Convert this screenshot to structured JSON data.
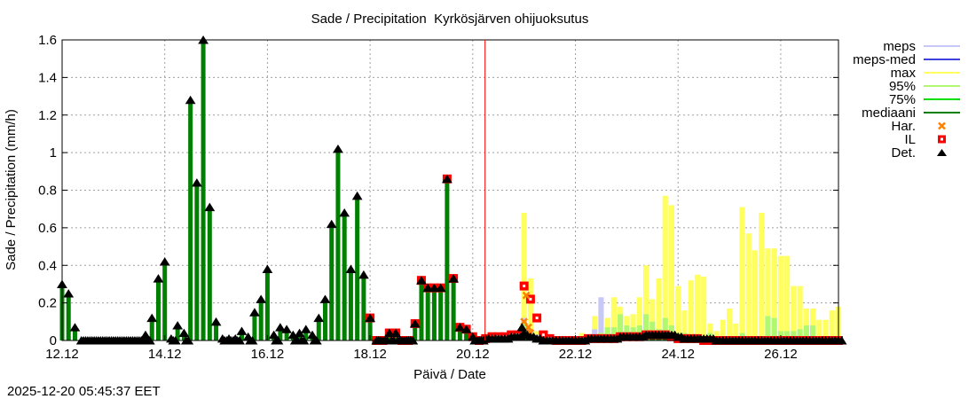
{
  "chart_data": {
    "type": "bar",
    "title": "Sade / Precipitation  Kyrkösjärven ohijuoksutus",
    "xlabel": "Päivä / Date",
    "ylabel": "Sade / Precipitation (mm/h)",
    "timestamp": "2025-12-20 05:45:37 EET",
    "ylim": [
      0,
      1.6
    ],
    "xlim": [
      "2025-12-12 00:00",
      "2025-12-27 03:00"
    ],
    "grid": true,
    "legend_position": "right",
    "y_ticks": [
      "0",
      "0.2",
      "0.4",
      "0.6",
      "0.8",
      "1",
      "1.2",
      "1.4",
      "1.6"
    ],
    "x_ticks": [
      {
        "label": "12.12",
        "date": "2025-12-12 00:00"
      },
      {
        "label": "14.12",
        "date": "2025-12-14 00:00"
      },
      {
        "label": "16.12",
        "date": "2025-12-16 00:00"
      },
      {
        "label": "18.12",
        "date": "2025-12-18 00:00"
      },
      {
        "label": "20.12",
        "date": "2025-12-20 00:00"
      },
      {
        "label": "22.12",
        "date": "2025-12-22 00:00"
      },
      {
        "label": "24.12",
        "date": "2025-12-24 00:00"
      },
      {
        "label": "26.12",
        "date": "2025-12-26 00:00"
      }
    ],
    "now_line": "2025-12-20 05:45",
    "colors": {
      "meps": "#c8c8f8",
      "meps-med": "#4040e0",
      "max": "#ffff60",
      "p95": "#b0f870",
      "p75": "#00e000",
      "mediaani": "#008000",
      "Har.": "#ff8000",
      "IL": "#ff0000",
      "Det.": "#000000",
      "now_line": "#ff0000"
    },
    "legend": [
      {
        "key": "meps",
        "label": "meps",
        "kind": "line"
      },
      {
        "key": "meps-med",
        "label": "meps-med",
        "kind": "line"
      },
      {
        "key": "max",
        "label": "max",
        "kind": "line"
      },
      {
        "key": "p95",
        "label": "95%",
        "kind": "line"
      },
      {
        "key": "p75",
        "label": "75%",
        "kind": "line"
      },
      {
        "key": "mediaani",
        "label": "mediaani",
        "kind": "line"
      },
      {
        "key": "Har.",
        "label": "Har.",
        "kind": "cross"
      },
      {
        "key": "IL",
        "label": "IL",
        "kind": "square"
      },
      {
        "key": "Det.",
        "label": "Det.",
        "kind": "triangle"
      }
    ],
    "observed": {
      "start": "2025-12-12 00:00",
      "step_hours": 3,
      "values": [
        0.3,
        0.25,
        0.07,
        0,
        0,
        0,
        0,
        0,
        0,
        0,
        0,
        0,
        0,
        0.03,
        0.12,
        0.33,
        0.42,
        0.01,
        0.08,
        0.04,
        1.28,
        0.84,
        1.6,
        0.71,
        0.1,
        0.01,
        0.01,
        0.01,
        0.05,
        0.02,
        0.15,
        0.22,
        0.38,
        0.03,
        0.07,
        0.06,
        0.03,
        0.04,
        0.06,
        0.03,
        0.12,
        0.22,
        0.62,
        1.02,
        0.68,
        0.38,
        0.77,
        0.35,
        0.12,
        0,
        0,
        0.04,
        0.04,
        0,
        0,
        0.09,
        0.32,
        0.28,
        0.28,
        0.28,
        0.86,
        0.33,
        0.07,
        0.06,
        0.02,
        0
      ]
    },
    "il_observed_from": "2025-12-18 00:00",
    "forecast": {
      "start": "2025-12-20 06:00",
      "step_hours": 3,
      "max": [
        0.01,
        0.02,
        0.02,
        0.03,
        0.03,
        0.04,
        0.68,
        0.33,
        0.05,
        0.04,
        0.02,
        0.01,
        0.01,
        0.02,
        0.02,
        0.04,
        0.01,
        0.13,
        0.17,
        0.12,
        0.23,
        0.18,
        0.13,
        0.14,
        0.23,
        0.4,
        0.22,
        0.33,
        0.77,
        0.72,
        0.29,
        0.16,
        0.32,
        0.35,
        0.34,
        0.09,
        0.05,
        0.11,
        0.17,
        0.09,
        0.71,
        0.57,
        0.48,
        0.68,
        0.49,
        0.49,
        0.45,
        0.45,
        0.29,
        0.29,
        0.17,
        0.17,
        0.11,
        0.11,
        0.16,
        0.18
      ],
      "p95": [
        0,
        0,
        0,
        0,
        0,
        0,
        0.1,
        0.04,
        0,
        0,
        0,
        0,
        0,
        0,
        0,
        0,
        0,
        0.03,
        0.04,
        0.07,
        0.07,
        0.14,
        0.08,
        0.07,
        0.08,
        0.14,
        0.1,
        0.06,
        0.12,
        0.08,
        0.04,
        0.04,
        0.03,
        0.03,
        0.02,
        0.04,
        0.02,
        0.02,
        0.02,
        0.02,
        0.04,
        0.02,
        0.02,
        0.02,
        0.13,
        0.12,
        0.05,
        0.05,
        0.05,
        0.06,
        0.08,
        0.08,
        0.02,
        0.02,
        0.02,
        0.01
      ],
      "meps": [
        0,
        0,
        0,
        0,
        0,
        0,
        0.12,
        0.06,
        0.03,
        0,
        0,
        0,
        0,
        0,
        0,
        0,
        0,
        0.06,
        0.23,
        0,
        0,
        0,
        0,
        0,
        0,
        0,
        0,
        0,
        0,
        0,
        0,
        0,
        0,
        0,
        0,
        0,
        0,
        0,
        0,
        0,
        0,
        0,
        0,
        0,
        0,
        0,
        0,
        0,
        0,
        0,
        0,
        0,
        0,
        0,
        0,
        0
      ],
      "mediaani": [
        0.01,
        0.01,
        0.01,
        0.01,
        0.02,
        0.02,
        0.03,
        0.02,
        0.01,
        0,
        0,
        0,
        0,
        0,
        0,
        0,
        0.01,
        0.01,
        0.01,
        0.01,
        0.01,
        0.02,
        0.02,
        0.02,
        0.02,
        0.03,
        0.03,
        0.03,
        0.03,
        0.03,
        0.02,
        0.01,
        0.01,
        0.01,
        0.01,
        0.01,
        0,
        0,
        0,
        0,
        0,
        0,
        0,
        0,
        0,
        0,
        0,
        0,
        0,
        0,
        0,
        0,
        0,
        0,
        0,
        0
      ],
      "il": [
        0.01,
        0.02,
        0.02,
        0.02,
        0.03,
        0.03,
        0.29,
        0.22,
        0.12,
        0.03,
        0.01,
        0,
        0,
        0,
        0,
        0,
        0.01,
        0.01,
        0.01,
        0.01,
        0.01,
        0.02,
        0.02,
        0.02,
        0.02,
        0.03,
        0.03,
        0.03,
        0.03,
        0.02,
        0.01,
        0.01,
        0.01,
        0.01,
        0,
        0,
        0,
        0,
        0,
        0,
        0,
        0,
        0,
        0,
        0,
        0,
        0,
        0,
        0,
        0,
        0,
        0,
        0,
        0,
        0,
        0
      ],
      "har": [
        [
          "2025-12-21 01:00",
          0.24
        ],
        [
          "2025-12-21 00:00",
          0.1
        ],
        [
          "2025-12-21 02:00",
          0.07
        ],
        [
          "2025-12-21 03:00",
          0.04
        ]
      ],
      "det": [
        [
          "2025-12-20 23:00",
          0.07
        ],
        [
          "2025-12-21 00:00",
          0.04
        ]
      ]
    }
  }
}
